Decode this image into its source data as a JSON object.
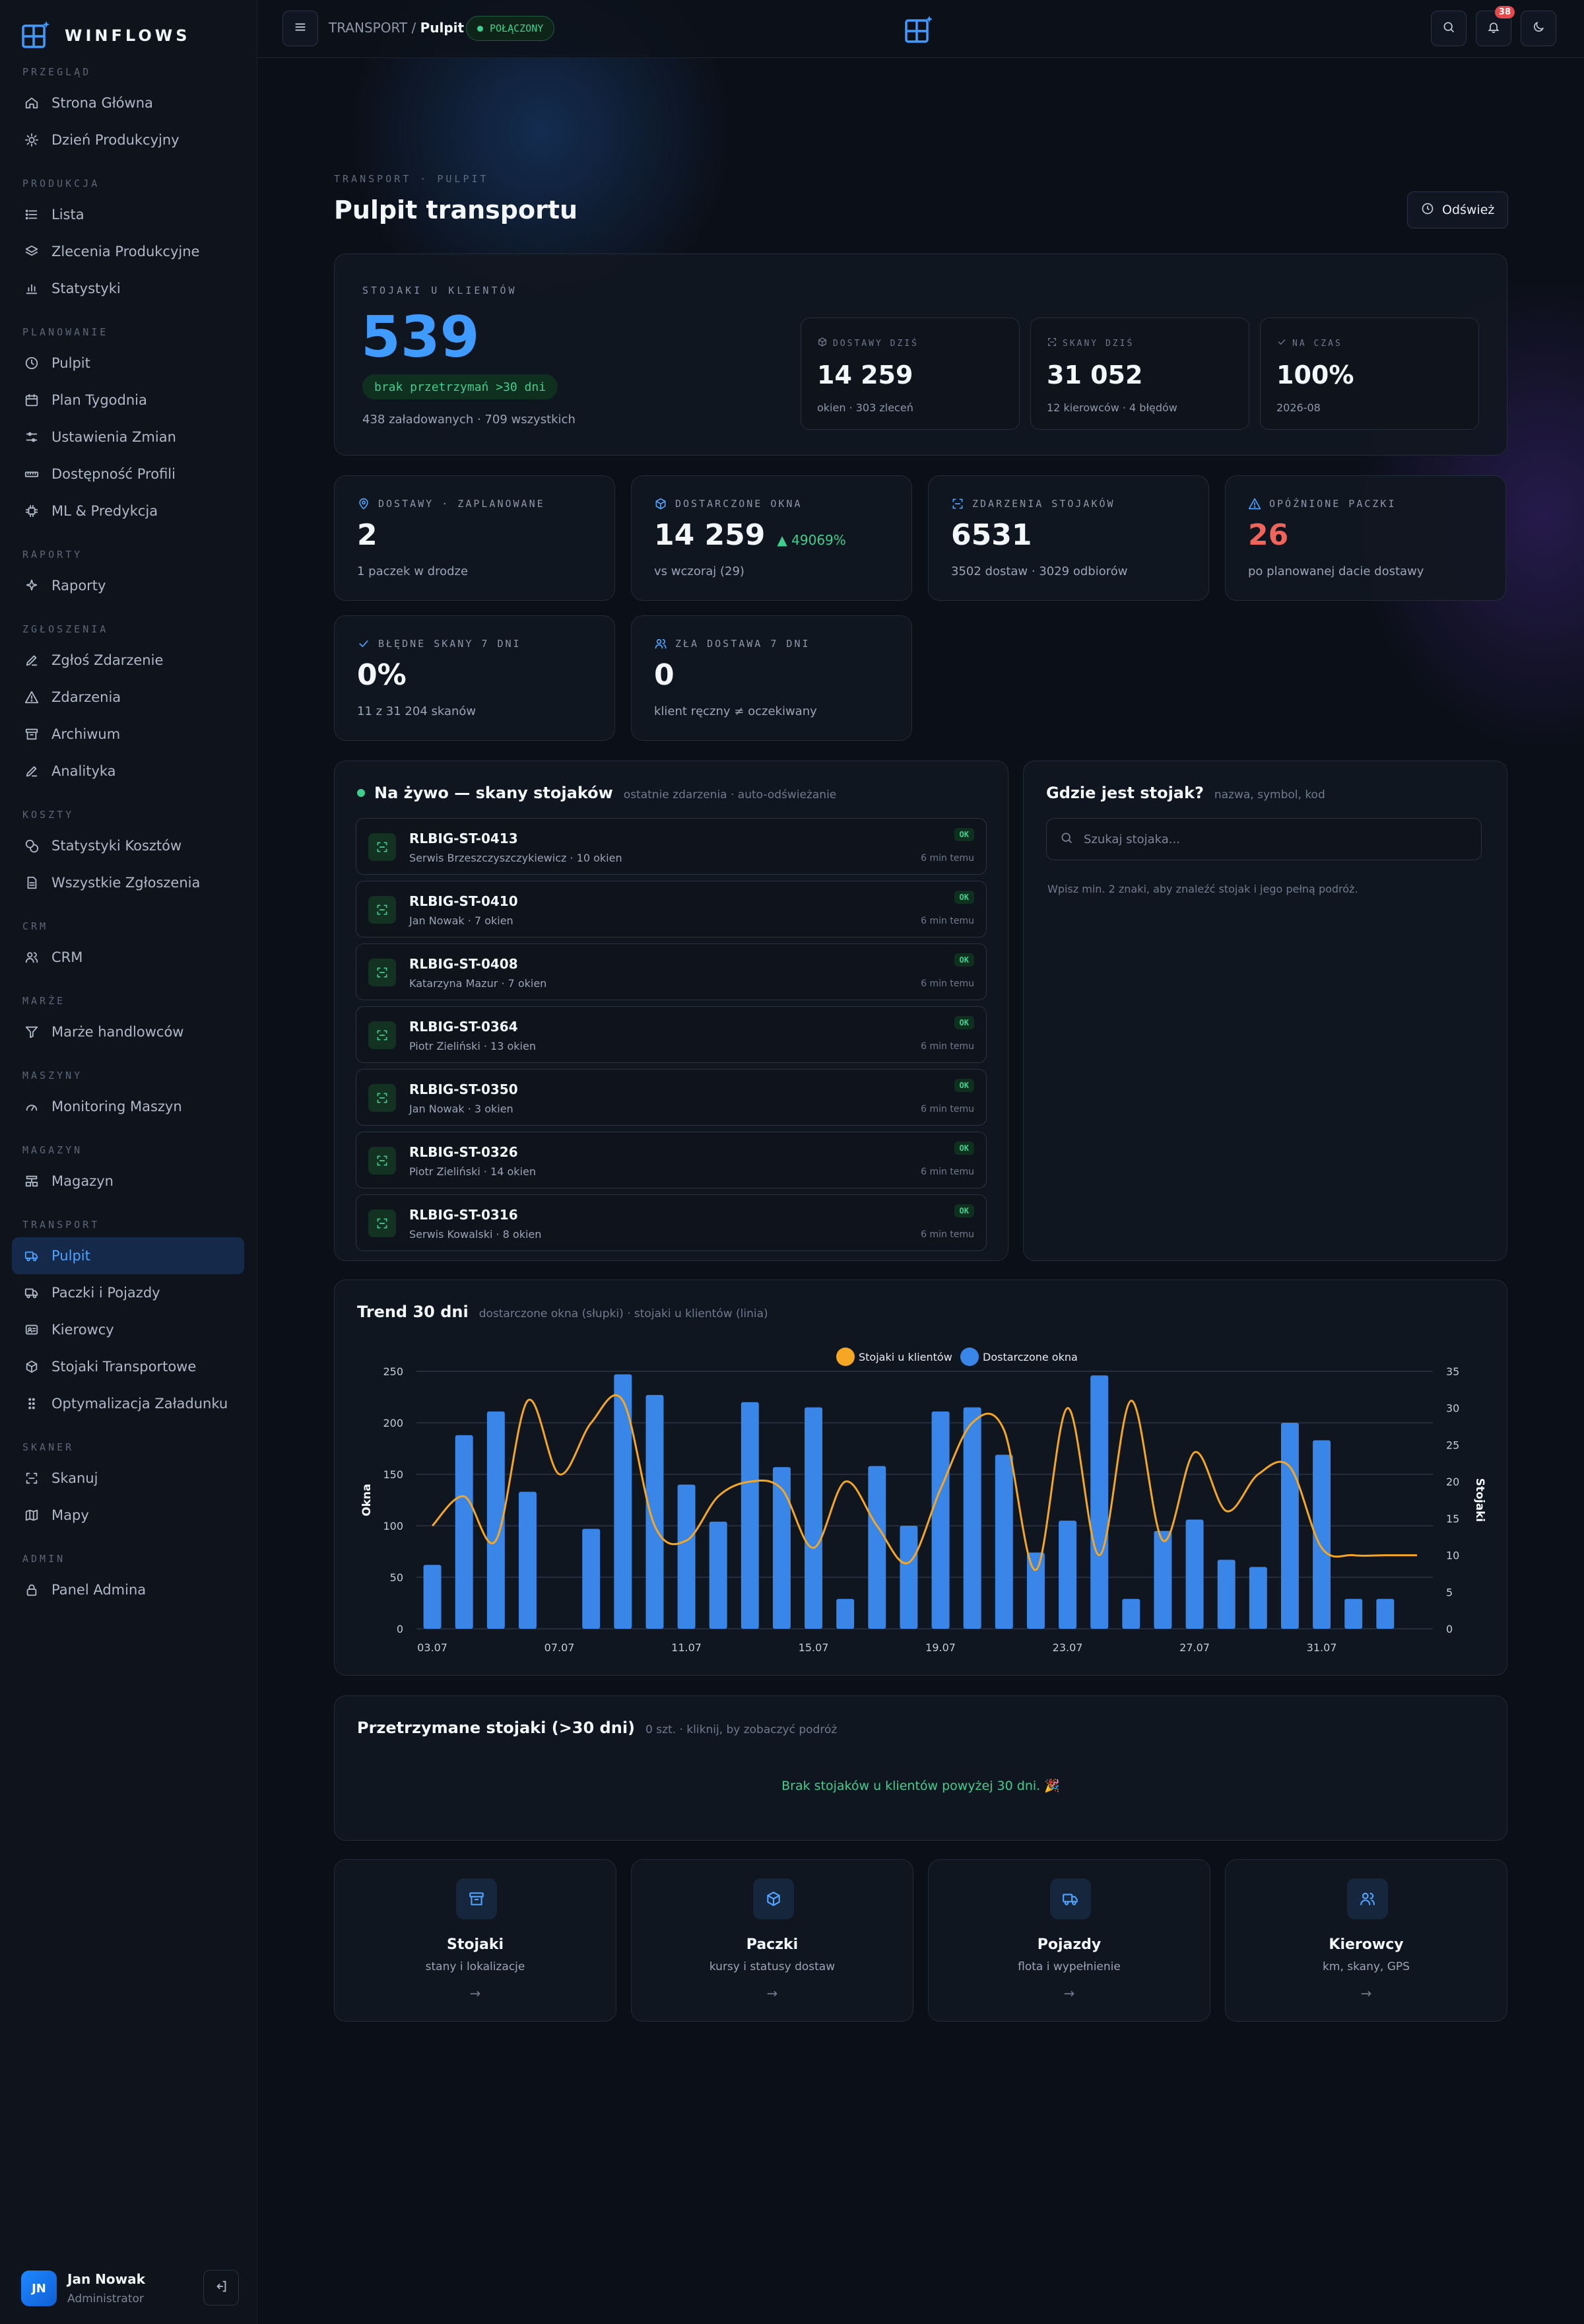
{
  "brand": {
    "name": "WINFLOWS"
  },
  "sidebar": {
    "sections": [
      {
        "title": "PRZEGLĄD",
        "items": [
          {
            "label": "Strona Główna",
            "icon": "home-icon"
          },
          {
            "label": "Dzień Produkcyjny",
            "icon": "sun-icon"
          }
        ]
      },
      {
        "title": "PRODUKCJA",
        "items": [
          {
            "label": "Lista",
            "icon": "list-icon"
          },
          {
            "label": "Zlecenia Produkcyjne",
            "icon": "layers-icon"
          },
          {
            "label": "Statystyki",
            "icon": "bar-chart-icon"
          }
        ]
      },
      {
        "title": "PLANOWANIE",
        "items": [
          {
            "label": "Pulpit",
            "icon": "clock-icon"
          },
          {
            "label": "Plan Tygodnia",
            "icon": "calendar-icon"
          },
          {
            "label": "Ustawienia Zmian",
            "icon": "sliders-icon"
          },
          {
            "label": "Dostępność Profili",
            "icon": "ruler-icon"
          },
          {
            "label": "ML & Predykcja",
            "icon": "chip-icon"
          }
        ]
      },
      {
        "title": "RAPORTY",
        "items": [
          {
            "label": "Raporty",
            "icon": "sparkle-icon"
          }
        ]
      },
      {
        "title": "ZGŁOSZENIA",
        "items": [
          {
            "label": "Zgłoś Zdarzenie",
            "icon": "pencil-icon"
          },
          {
            "label": "Zdarzenia",
            "icon": "warning-icon"
          },
          {
            "label": "Archiwum",
            "icon": "archive-icon"
          },
          {
            "label": "Analityka",
            "icon": "pencil-icon"
          }
        ]
      },
      {
        "title": "KOSZTY",
        "items": [
          {
            "label": "Statystyki Kosztów",
            "icon": "coins-icon"
          },
          {
            "label": "Wszystkie Zgłoszenia",
            "icon": "document-icon"
          }
        ]
      },
      {
        "title": "CRM",
        "items": [
          {
            "label": "CRM",
            "icon": "users-icon"
          }
        ]
      },
      {
        "title": "MARŻE",
        "items": [
          {
            "label": "Marże handlowców",
            "icon": "filter-icon"
          }
        ]
      },
      {
        "title": "MASZYNY",
        "items": [
          {
            "label": "Monitoring Maszyn",
            "icon": "gauge-icon"
          }
        ]
      },
      {
        "title": "MAGAZYN",
        "items": [
          {
            "label": "Magazyn",
            "icon": "warehouse-icon"
          }
        ]
      },
      {
        "title": "TRANSPORT",
        "items": [
          {
            "label": "Pulpit",
            "icon": "truck-icon",
            "active": true
          },
          {
            "label": "Paczki i Pojazdy",
            "icon": "truck-icon"
          },
          {
            "label": "Kierowcy",
            "icon": "id-card-icon"
          },
          {
            "label": "Stojaki Transportowe",
            "icon": "box-icon"
          },
          {
            "label": "Optymalizacja Załadunku",
            "icon": "grip-icon"
          }
        ]
      },
      {
        "title": "SKANER",
        "items": [
          {
            "label": "Skanuj",
            "icon": "scan-icon"
          },
          {
            "label": "Mapy",
            "icon": "map-icon"
          }
        ]
      },
      {
        "title": "ADMIN",
        "items": [
          {
            "label": "Panel Admina",
            "icon": "lock-icon"
          }
        ]
      }
    ]
  },
  "user": {
    "initials": "JN",
    "name": "Jan Nowak",
    "role": "Administrator"
  },
  "topbar": {
    "crumb_root": "TRANSPORT",
    "crumb_sep": "/",
    "crumb_current": "Pulpit",
    "status": "POŁĄCZONY",
    "notifications": "38"
  },
  "page": {
    "eyebrow": "TRANSPORT · PULPIT",
    "title": "Pulpit transportu",
    "refresh_label": "Odśwież"
  },
  "hero": {
    "label": "STOJAKI U KLIENTÓW",
    "value": "539",
    "pill": "brak przetrzymań >30 dni",
    "sub": "438 załadowanych · 709 wszystkich",
    "minis": [
      {
        "label": "DOSTAWY DZIŚ",
        "value": "14 259",
        "sub": "okien · 303 zleceń",
        "icon": "box-icon"
      },
      {
        "label": "SKANY DZIŚ",
        "value": "31 052",
        "sub": "12 kierowców · 4 błędów",
        "icon": "scan-icon"
      },
      {
        "label": "NA CZAS",
        "value": "100%",
        "sub": "2026-08",
        "icon": "check-icon"
      }
    ]
  },
  "stats": [
    {
      "label": "DOSTAWY · ZAPLANOWANE",
      "value": "2",
      "delta": "",
      "sub": "1 paczek w drodze",
      "icon": "pin-icon",
      "color": "#f3f6fb"
    },
    {
      "label": "DOSTARCZONE OKNA",
      "value": "14 259",
      "delta": "▲ 49069%",
      "sub": "vs wczoraj (29)",
      "icon": "box-icon",
      "color": "#f3f6fb"
    },
    {
      "label": "ZDARZENIA STOJAKÓW",
      "value": "6531",
      "delta": "",
      "sub": "3502 dostaw · 3029 odbiorów",
      "icon": "scan-icon",
      "color": "#f3f6fb"
    },
    {
      "label": "OPÓŹNIONE PACZKI",
      "value": "26",
      "delta": "",
      "sub": "po planowanej dacie dostawy",
      "icon": "warning-icon",
      "color": "#f0645c"
    },
    {
      "label": "BŁĘDNE SKANY 7 DNI",
      "value": "0%",
      "delta": "",
      "sub": "11 z 31 204 skanów",
      "icon": "check-icon",
      "color": "#f3f6fb"
    },
    {
      "label": "ZŁA DOSTAWA 7 DNI",
      "value": "0",
      "delta": "",
      "sub": "klient ręczny ≠ oczekiwany",
      "icon": "users-icon",
      "color": "#f3f6fb"
    }
  ],
  "live": {
    "title": "Na żywo — skany stojaków",
    "subtitle": "ostatnie zdarzenia · auto-odświeżanie",
    "items": [
      {
        "code": "RLBIG-ST-0413",
        "who": "Serwis Brzeszczyszczykiewicz · 10 okien",
        "status": "OK",
        "ago": "6 min temu"
      },
      {
        "code": "RLBIG-ST-0410",
        "who": "Jan Nowak · 7 okien",
        "status": "OK",
        "ago": "6 min temu"
      },
      {
        "code": "RLBIG-ST-0408",
        "who": "Katarzyna Mazur · 7 okien",
        "status": "OK",
        "ago": "6 min temu"
      },
      {
        "code": "RLBIG-ST-0364",
        "who": "Piotr Zieliński · 13 okien",
        "status": "OK",
        "ago": "6 min temu"
      },
      {
        "code": "RLBIG-ST-0350",
        "who": "Jan Nowak · 3 okien",
        "status": "OK",
        "ago": "6 min temu"
      },
      {
        "code": "RLBIG-ST-0326",
        "who": "Piotr Zieliński · 14 okien",
        "status": "OK",
        "ago": "6 min temu"
      },
      {
        "code": "RLBIG-ST-0316",
        "who": "Serwis Kowalski · 8 okien",
        "status": "OK",
        "ago": "6 min temu"
      }
    ]
  },
  "finder": {
    "title": "Gdzie jest stojak?",
    "subtitle": "nazwa, symbol, kod",
    "placeholder": "Szukaj stojaka...",
    "hint": "Wpisz min. 2 znaki, aby znaleźć stojak i jego pełną podróż."
  },
  "trend": {
    "title": "Trend 30 dni",
    "subtitle": "dostarczone okna (słupki) · stojaki u klientów (linia)"
  },
  "chart_data": {
    "type": "bar",
    "title": "Trend 30 dni",
    "subtitle": "dostarczone okna (słupki) · stojaki u klientów (linia)",
    "x": [
      "03.07",
      "04.07",
      "05.07",
      "06.07",
      "07.07",
      "08.07",
      "09.07",
      "10.07",
      "11.07",
      "12.07",
      "13.07",
      "14.07",
      "15.07",
      "16.07",
      "17.07",
      "18.07",
      "19.07",
      "20.07",
      "21.07",
      "22.07",
      "23.07",
      "24.07",
      "25.07",
      "26.07",
      "27.07",
      "28.07",
      "29.07",
      "30.07",
      "31.07",
      "01.08",
      "02.08",
      "03.08"
    ],
    "x_tick_labels": [
      "03.07",
      "07.07",
      "11.07",
      "15.07",
      "19.07",
      "23.07",
      "27.07",
      "31.07"
    ],
    "ylabel": "Okna",
    "y2label": "Stojaki",
    "ylim": [
      0,
      250
    ],
    "y2lim": [
      0,
      35
    ],
    "yticks": [
      0,
      50,
      100,
      150,
      200,
      250
    ],
    "y2ticks": [
      0,
      5,
      10,
      15,
      20,
      25,
      30,
      35
    ],
    "legend": "top-center",
    "grid": true,
    "series": [
      {
        "name": "Stojaki u klientów",
        "type": "line",
        "axis": "right",
        "color": "#f5a623",
        "values": [
          14,
          18,
          12,
          31,
          21,
          28,
          31,
          14,
          12,
          18,
          20,
          19,
          11,
          20,
          14,
          9,
          19,
          28,
          27,
          8,
          30,
          10,
          31,
          12,
          24,
          16,
          21,
          22,
          11,
          10,
          10,
          10
        ]
      },
      {
        "name": "Dostarczone okna",
        "type": "bar",
        "axis": "left",
        "color": "#3a86e8",
        "values": [
          62,
          188,
          211,
          133,
          0,
          97,
          247,
          227,
          140,
          104,
          220,
          157,
          215,
          29,
          158,
          100,
          211,
          215,
          169,
          74,
          105,
          246,
          29,
          95,
          106,
          67,
          60,
          200,
          183,
          29,
          29,
          0
        ]
      }
    ]
  },
  "held": {
    "title": "Przetrzymane stojaki (>30 dni)",
    "subtitle": "0 szt. · kliknij, by zobaczyć podróż",
    "empty": "Brak stojaków u klientów powyżej 30 dni. 🎉"
  },
  "tiles": [
    {
      "title": "Stojaki",
      "sub": "stany i lokalizacje",
      "icon": "archive-icon",
      "arrow": "→"
    },
    {
      "title": "Paczki",
      "sub": "kursy i statusy dostaw",
      "icon": "box-icon",
      "arrow": "→"
    },
    {
      "title": "Pojazdy",
      "sub": "flota i wypełnienie",
      "icon": "truck-icon",
      "arrow": "→"
    },
    {
      "title": "Kierowcy",
      "sub": "km, skany, GPS",
      "icon": "users-icon",
      "arrow": "→"
    }
  ],
  "colors": {
    "accent": "#3f9bff",
    "success": "#3ecf8e",
    "danger": "#f0645c",
    "line": "#f5a623",
    "bar": "#3a86e8"
  }
}
